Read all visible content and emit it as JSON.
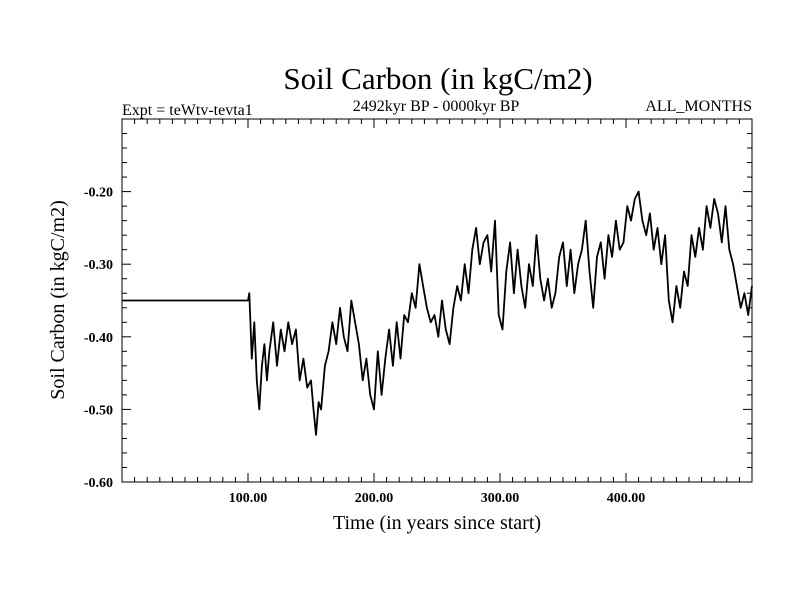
{
  "chart_data": {
    "type": "line",
    "title": "Soil Carbon (in kgC/m2)",
    "subtitle": "2492kyr BP - 0000kyr BP",
    "left_label": "Expt = teWtv-tevta1",
    "right_label": "ALL_MONTHS",
    "xlabel": "Time (in years since start)",
    "ylabel": "Soil Carbon (in kgC/m2)",
    "xlim": [
      0,
      500
    ],
    "ylim": [
      -0.6,
      -0.1
    ],
    "x_ticks": [
      100,
      200,
      300,
      400
    ],
    "x_tick_labels": [
      "100.00",
      "200.00",
      "300.00",
      "400.00"
    ],
    "y_ticks": [
      -0.6,
      -0.5,
      -0.4,
      -0.3,
      -0.2
    ],
    "y_tick_labels": [
      "-0.60",
      "-0.50",
      "-0.40",
      "-0.30",
      "-0.20"
    ],
    "grid": false,
    "series": [
      {
        "name": "Soil Carbon",
        "x": [
          0,
          100,
          101,
          103,
          105,
          107,
          109,
          111,
          113,
          115,
          117,
          120,
          123,
          126,
          129,
          132,
          135,
          138,
          141,
          144,
          147,
          150,
          152,
          154,
          156,
          158,
          161,
          164,
          167,
          170,
          173,
          176,
          179,
          182,
          185,
          188,
          191,
          194,
          197,
          200,
          203,
          206,
          209,
          212,
          215,
          218,
          221,
          224,
          227,
          230,
          233,
          236,
          239,
          242,
          245,
          248,
          251,
          254,
          257,
          260,
          263,
          266,
          269,
          272,
          275,
          278,
          281,
          284,
          287,
          290,
          293,
          296,
          299,
          302,
          305,
          308,
          311,
          314,
          317,
          320,
          323,
          326,
          329,
          332,
          335,
          338,
          341,
          344,
          347,
          350,
          353,
          356,
          359,
          362,
          365,
          368,
          371,
          374,
          377,
          380,
          383,
          386,
          389,
          392,
          395,
          398,
          401,
          404,
          407,
          410,
          413,
          416,
          419,
          422,
          425,
          428,
          431,
          434,
          437,
          440,
          443,
          446,
          449,
          452,
          455,
          458,
          461,
          464,
          467,
          470,
          473,
          476,
          479,
          482,
          485,
          488,
          491,
          494,
          497,
          500
        ],
        "values": [
          -0.35,
          -0.35,
          -0.34,
          -0.43,
          -0.38,
          -0.46,
          -0.5,
          -0.44,
          -0.41,
          -0.46,
          -0.42,
          -0.38,
          -0.44,
          -0.39,
          -0.42,
          -0.38,
          -0.41,
          -0.39,
          -0.46,
          -0.43,
          -0.47,
          -0.46,
          -0.5,
          -0.535,
          -0.49,
          -0.5,
          -0.44,
          -0.42,
          -0.38,
          -0.41,
          -0.36,
          -0.4,
          -0.42,
          -0.35,
          -0.38,
          -0.41,
          -0.46,
          -0.43,
          -0.48,
          -0.5,
          -0.42,
          -0.48,
          -0.43,
          -0.39,
          -0.44,
          -0.38,
          -0.43,
          -0.37,
          -0.38,
          -0.34,
          -0.36,
          -0.3,
          -0.33,
          -0.36,
          -0.38,
          -0.37,
          -0.4,
          -0.35,
          -0.39,
          -0.41,
          -0.36,
          -0.33,
          -0.35,
          -0.3,
          -0.34,
          -0.28,
          -0.25,
          -0.3,
          -0.27,
          -0.26,
          -0.31,
          -0.24,
          -0.37,
          -0.39,
          -0.31,
          -0.27,
          -0.34,
          -0.28,
          -0.33,
          -0.36,
          -0.3,
          -0.33,
          -0.26,
          -0.32,
          -0.35,
          -0.32,
          -0.36,
          -0.34,
          -0.29,
          -0.27,
          -0.33,
          -0.28,
          -0.34,
          -0.3,
          -0.28,
          -0.24,
          -0.31,
          -0.36,
          -0.29,
          -0.27,
          -0.32,
          -0.26,
          -0.29,
          -0.24,
          -0.28,
          -0.27,
          -0.22,
          -0.24,
          -0.21,
          -0.2,
          -0.24,
          -0.26,
          -0.23,
          -0.28,
          -0.25,
          -0.3,
          -0.26,
          -0.35,
          -0.38,
          -0.33,
          -0.36,
          -0.31,
          -0.33,
          -0.26,
          -0.29,
          -0.25,
          -0.28,
          -0.22,
          -0.25,
          -0.21,
          -0.23,
          -0.27,
          -0.22,
          -0.28,
          -0.3,
          -0.33,
          -0.36,
          -0.34,
          -0.37,
          -0.33
        ]
      }
    ]
  }
}
